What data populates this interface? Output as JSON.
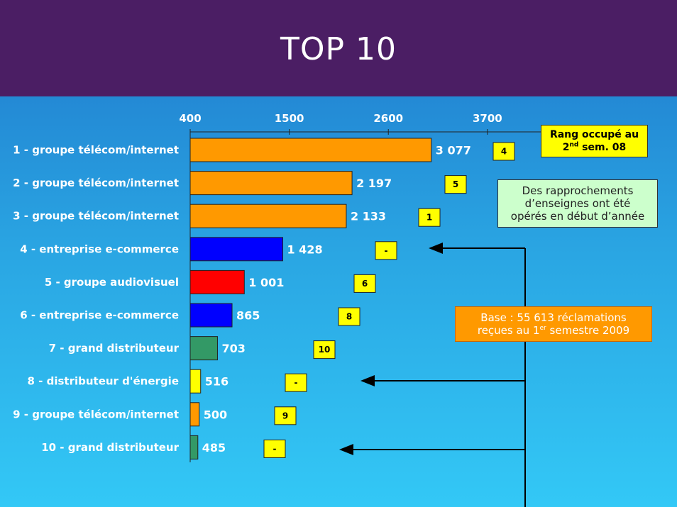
{
  "title": "TOP 10",
  "chart_data": {
    "type": "bar",
    "orientation": "horizontal",
    "xlim": [
      400,
      4300
    ],
    "x_ticks": [
      "400",
      "1500",
      "2600",
      "3700"
    ],
    "grid": false,
    "categories": [
      "1 - groupe télécom/internet",
      "2 - groupe télécom/internet",
      "3 - groupe télécom/internet",
      "4 - entreprise e-commerce",
      "5 - groupe audiovisuel",
      "6 - entreprise e-commerce",
      "7 - grand distributeur",
      "8 - distributeur d'énergie",
      "9 - groupe télécom/internet",
      "10 - grand distributeur"
    ],
    "values": [
      3077,
      2197,
      2133,
      1428,
      1001,
      865,
      703,
      516,
      500,
      485
    ],
    "value_labels": [
      "3 077",
      "2 197",
      "2 133",
      "1 428",
      "1 001",
      "865",
      "703",
      "516",
      "500",
      "485"
    ],
    "bar_colors": [
      "#ff9900",
      "#ff9900",
      "#ff9900",
      "#0000ff",
      "#ff0000",
      "#0000ff",
      "#339966",
      "#ffff00",
      "#ff9900",
      "#339966"
    ],
    "ranks": [
      "4",
      "5",
      "1",
      "-",
      "6",
      "8",
      "10",
      "-",
      "9",
      "-"
    ]
  },
  "rank_header": {
    "line1": "Rang occupé au",
    "line2_pre": "2",
    "line2_sup": "nd",
    "line2_post": " sem. 08"
  },
  "note": {
    "line1": "Des rapprochements",
    "line2": "d’enseignes ont été",
    "line3": "opérés en début d’année"
  },
  "base": {
    "line1": "Base : 55 613 réclamations",
    "line2_pre": "reçues au 1",
    "line2_sup": "er",
    "line2_post": " semestre 2009"
  },
  "colors": {
    "header_bg": "#4b1e64",
    "rank_box": "#ffff00",
    "note_box": "#ccffcc",
    "base_box": "#ff9900"
  }
}
